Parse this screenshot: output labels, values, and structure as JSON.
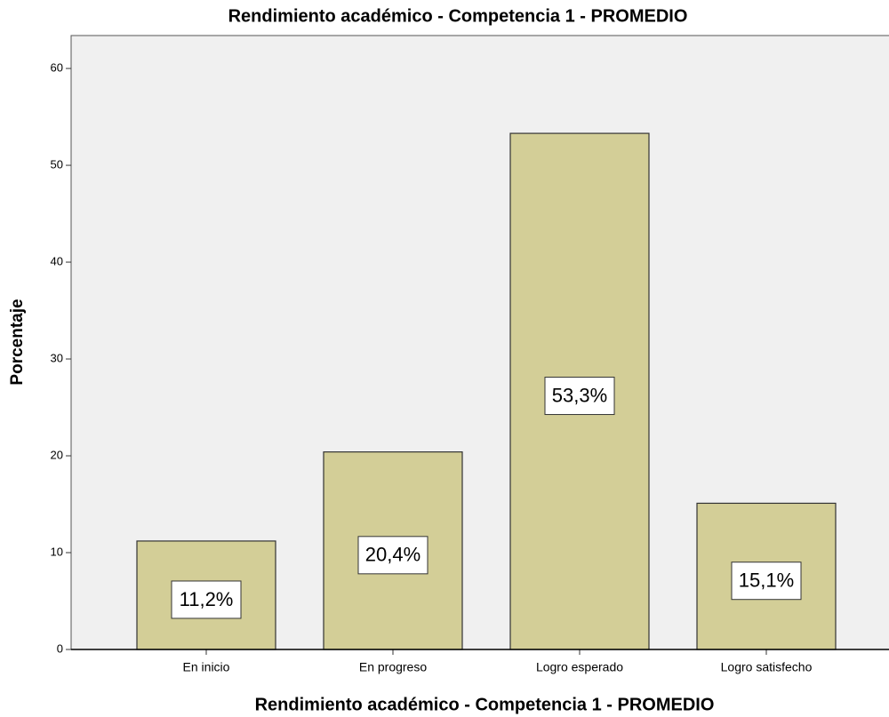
{
  "chart_data": {
    "type": "bar",
    "title": "Rendimiento académico - Competencia 1 - PROMEDIO",
    "x_label": "Rendimiento académico - Competencia 1 - PROMEDIO",
    "y_label": "Porcentaje",
    "categories": [
      "En inicio",
      "En progreso",
      "Logro esperado",
      "Logro satisfecho"
    ],
    "values": [
      11.2,
      20.4,
      53.3,
      15.1
    ],
    "value_labels": [
      "11,2%",
      "20,4%",
      "53,3%",
      "15,1%"
    ],
    "color": "#d3ce97",
    "ylim": [
      0,
      63.4
    ],
    "yticks": [
      0,
      10,
      20,
      30,
      40,
      50,
      60
    ]
  }
}
